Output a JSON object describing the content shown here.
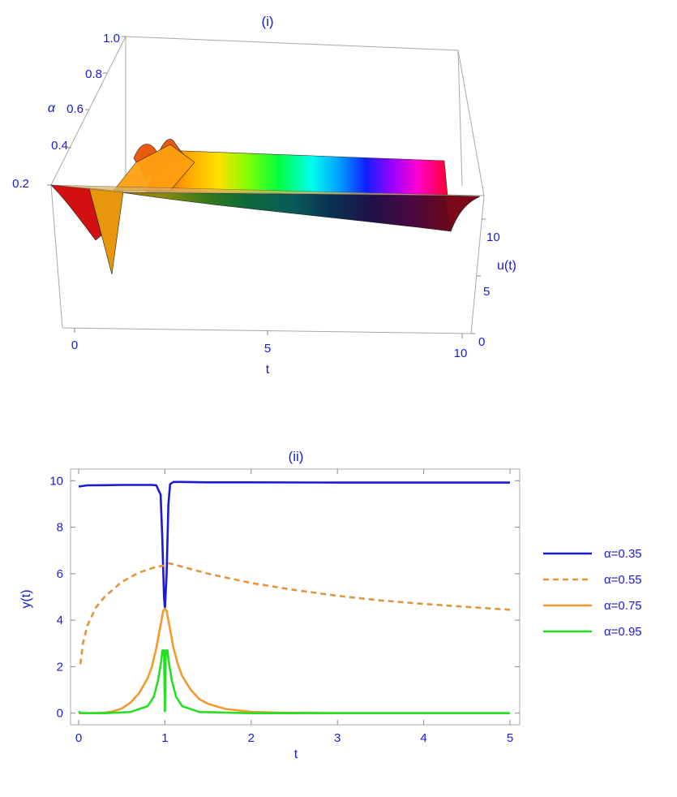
{
  "chart_data": [
    {
      "type": "surface",
      "title": "(i)",
      "xlabel": "t",
      "ylabel": "α",
      "zlabel": "u(t)",
      "x_ticks": [
        "0",
        "5",
        "10"
      ],
      "y_ticks": [
        "0.2",
        "0.4",
        "0.6",
        "0.8",
        "1.0"
      ],
      "z_ticks": [
        "0",
        "5",
        "10"
      ],
      "xlim": [
        0,
        10
      ],
      "ylim": [
        0.2,
        1.0
      ],
      "zlim": [
        0,
        12
      ],
      "colormap": "hue"
    },
    {
      "type": "line",
      "title": "(ii)",
      "xlabel": "t",
      "ylabel": "y(t)",
      "xlim": [
        0,
        5
      ],
      "ylim": [
        -0.5,
        10.5
      ],
      "x_ticks": [
        "0",
        "1",
        "2",
        "3",
        "4",
        "5"
      ],
      "y_ticks": [
        "0",
        "2",
        "4",
        "6",
        "8",
        "10"
      ],
      "grid": false,
      "legend_placement": "right",
      "series": [
        {
          "name": "α=0.35",
          "color": "#1a1ad8",
          "dash": "solid",
          "x": [
            0,
            0.1,
            0.3,
            0.5,
            0.7,
            0.85,
            0.9,
            0.95,
            0.97,
            0.99,
            1.0,
            1.02,
            1.04,
            1.06,
            1.1,
            1.2,
            1.5,
            2,
            3,
            4,
            5
          ],
          "y": [
            9.75,
            9.8,
            9.81,
            9.82,
            9.82,
            9.82,
            9.8,
            9.4,
            7.5,
            5.0,
            4.5,
            6.0,
            9.0,
            9.85,
            9.95,
            9.95,
            9.93,
            9.93,
            9.92,
            9.92,
            9.92
          ]
        },
        {
          "name": "α=0.55",
          "color": "#e0963c",
          "dash": "dashed",
          "x": [
            0.02,
            0.05,
            0.1,
            0.2,
            0.3,
            0.5,
            0.7,
            0.9,
            1.0,
            1.05,
            1.1,
            1.2,
            1.5,
            2,
            2.5,
            3,
            3.5,
            4,
            4.5,
            5
          ],
          "y": [
            2.1,
            3.0,
            3.75,
            4.55,
            5.0,
            5.65,
            6.05,
            6.3,
            6.35,
            6.45,
            6.4,
            6.3,
            6.0,
            5.6,
            5.3,
            5.05,
            4.85,
            4.7,
            4.57,
            4.45
          ]
        },
        {
          "name": "α=0.75",
          "color": "#f39a2c",
          "dash": "solid",
          "x": [
            0,
            0.2,
            0.3,
            0.4,
            0.5,
            0.6,
            0.7,
            0.8,
            0.85,
            0.9,
            0.95,
            0.98,
            1.0,
            1.02,
            1.05,
            1.1,
            1.15,
            1.2,
            1.3,
            1.4,
            1.5,
            1.7,
            2.0,
            2.3,
            2.6,
            3,
            4,
            5
          ],
          "y": [
            0,
            0,
            0.02,
            0.08,
            0.2,
            0.45,
            0.85,
            1.5,
            2.0,
            2.8,
            3.8,
            4.4,
            4.5,
            4.4,
            3.8,
            2.8,
            2.1,
            1.6,
            1.0,
            0.6,
            0.4,
            0.18,
            0.06,
            0.02,
            0.01,
            0,
            0,
            0
          ]
        },
        {
          "name": "α=0.95",
          "color": "#22e022",
          "dash": "solid",
          "x": [
            0,
            0.02,
            0.05,
            0.3,
            0.6,
            0.8,
            0.87,
            0.92,
            0.96,
            0.97,
            0.99,
            0.995,
            1.0,
            1.005,
            1.01,
            1.03,
            1.04,
            1.08,
            1.13,
            1.2,
            1.4,
            2,
            3,
            4,
            5
          ],
          "y": [
            0.08,
            0.02,
            0,
            0,
            0.05,
            0.3,
            0.7,
            1.4,
            2.3,
            2.7,
            2.7,
            1.2,
            0.08,
            1.2,
            2.7,
            2.7,
            2.3,
            1.4,
            0.7,
            0.3,
            0.05,
            0,
            0,
            0,
            0
          ]
        }
      ]
    }
  ]
}
